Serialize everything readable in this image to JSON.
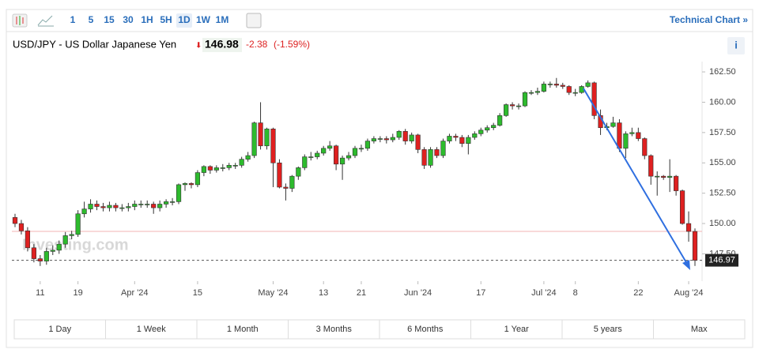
{
  "toolbar": {
    "intervals": [
      "1",
      "5",
      "15",
      "30",
      "1H",
      "5H",
      "1D",
      "1W",
      "1M"
    ],
    "link": "Technical Chart »"
  },
  "header": {
    "title": "USD/JPY - US Dollar Japanese Yen",
    "price": "146.98",
    "change": "-2.38",
    "change_pct": "(-1.59%)",
    "info": "i"
  },
  "ranges": [
    "1 Day",
    "1 Week",
    "1 Month",
    "3 Months",
    "6 Months",
    "1 Year",
    "5 years",
    "Max"
  ],
  "chart_data": {
    "type": "candlestick",
    "watermark": "Investing.com",
    "up_color": "#2dbb2d",
    "down_color": "#df2020",
    "ylim": [
      145.25,
      163.35
    ],
    "yticks": [
      {
        "value": 147.5,
        "label": "147.50"
      },
      {
        "value": 150,
        "label": "150.00"
      },
      {
        "value": 152.5,
        "label": "152.50"
      },
      {
        "value": 155,
        "label": "155.00"
      },
      {
        "value": 157.5,
        "label": "157.50"
      },
      {
        "value": 160,
        "label": "160.00"
      },
      {
        "value": 162.5,
        "label": "162.50"
      }
    ],
    "last_price": 146.97,
    "previous_close": 149.35,
    "categories": [
      null,
      null,
      null,
      null,
      "11",
      null,
      null,
      null,
      null,
      null,
      "19",
      null,
      null,
      null,
      null,
      null,
      null,
      null,
      null,
      "Apr '24",
      null,
      null,
      null,
      null,
      null,
      null,
      null,
      null,
      null,
      "15",
      null,
      null,
      null,
      null,
      null,
      null,
      null,
      null,
      null,
      null,
      null,
      "May '24",
      null,
      null,
      null,
      null,
      null,
      null,
      null,
      "13",
      null,
      null,
      null,
      null,
      null,
      "21",
      null,
      null,
      null,
      null,
      null,
      null,
      null,
      null,
      "Jun '24",
      null,
      null,
      null,
      null,
      null,
      null,
      null,
      null,
      null,
      "17",
      null,
      null,
      null,
      null,
      null,
      null,
      null,
      null,
      null,
      "Jul '24",
      null,
      null,
      null,
      null,
      "8",
      null,
      null,
      null,
      null,
      null,
      null,
      null,
      null,
      null,
      "22",
      null,
      null,
      null,
      null,
      null,
      null,
      null,
      "Aug '24",
      null
    ],
    "open": [
      150.5,
      150.0,
      149.4,
      148.0,
      147.1,
      146.9,
      147.7,
      147.8,
      148.3,
      149.0,
      149.1,
      150.8,
      151.2,
      151.6,
      151.4,
      151.3,
      151.5,
      151.3,
      151.3,
      151.4,
      151.6,
      151.6,
      151.6,
      151.3,
      151.6,
      151.8,
      151.8,
      153.2,
      153.3,
      153.2,
      154.2,
      154.7,
      154.4,
      154.6,
      154.6,
      154.8,
      154.8,
      155.3,
      155.6,
      158.3,
      156.4,
      157.8,
      155.0,
      153.0,
      152.9,
      153.9,
      154.6,
      155.5,
      155.5,
      155.8,
      156.2,
      156.4,
      154.9,
      155.4,
      155.6,
      156.2,
      156.2,
      156.8,
      157.0,
      157.0,
      156.9,
      157.1,
      157.6,
      156.8,
      157.3,
      156.1,
      154.8,
      156.1,
      155.6,
      156.8,
      157.2,
      157.1,
      156.6,
      157.1,
      157.4,
      157.7,
      157.9,
      158.1,
      158.9,
      159.8,
      159.7,
      159.7,
      160.8,
      160.8,
      160.9,
      161.5,
      161.5,
      161.4,
      161.3,
      160.8,
      160.8,
      161.3,
      161.6,
      158.9,
      157.9,
      158.0,
      158.3,
      156.2,
      157.4,
      157.5,
      157.0,
      155.6,
      153.9,
      153.9,
      153.8,
      153.9,
      152.7,
      150.0,
      149.35
    ],
    "high": [
      150.8,
      150.3,
      149.7,
      148.3,
      147.4,
      148.0,
      148.2,
      148.6,
      149.3,
      149.4,
      151.1,
      151.8,
      152.0,
      151.9,
      151.7,
      151.8,
      151.7,
      151.6,
      151.7,
      151.9,
      151.9,
      151.9,
      151.8,
      151.9,
      152.0,
      152.1,
      153.3,
      153.4,
      153.4,
      154.4,
      154.8,
      154.8,
      154.8,
      154.9,
      155.0,
      155.0,
      155.5,
      155.9,
      158.4,
      160.0,
      157.9,
      157.9,
      155.3,
      153.3,
      154.0,
      154.7,
      155.7,
      155.9,
      156.0,
      156.4,
      156.8,
      156.5,
      155.6,
      155.9,
      156.4,
      156.5,
      157.0,
      157.2,
      157.2,
      157.2,
      157.4,
      157.7,
      157.8,
      157.5,
      157.4,
      156.3,
      156.3,
      156.3,
      157.0,
      157.4,
      157.4,
      157.3,
      157.3,
      157.6,
      157.9,
      158.1,
      158.3,
      159.1,
      159.9,
      160.0,
      159.9,
      160.9,
      161.0,
      161.2,
      161.7,
      161.7,
      162.0,
      161.6,
      161.4,
      161.1,
      161.4,
      161.8,
      161.7,
      159.4,
      158.3,
      158.8,
      158.6,
      157.6,
      157.9,
      157.9,
      157.1,
      155.7,
      154.3,
      154.0,
      155.3,
      154.0,
      152.8,
      151.0,
      149.6
    ],
    "low": [
      149.7,
      149.1,
      147.7,
      146.8,
      146.5,
      146.6,
      147.4,
      147.5,
      148.0,
      148.7,
      148.9,
      150.5,
      150.9,
      151.1,
      151.0,
      151.0,
      151.0,
      151.0,
      151.0,
      151.1,
      151.3,
      151.3,
      150.8,
      151.0,
      151.3,
      151.5,
      151.6,
      152.7,
      152.9,
      153.0,
      153.9,
      154.1,
      154.2,
      154.3,
      154.4,
      154.5,
      154.6,
      155.1,
      155.4,
      156.1,
      156.1,
      153.0,
      152.9,
      151.9,
      152.6,
      153.6,
      154.4,
      155.2,
      155.3,
      155.6,
      156.0,
      154.4,
      153.6,
      155.2,
      155.4,
      155.9,
      156.0,
      156.6,
      156.7,
      156.6,
      156.7,
      156.9,
      156.5,
      156.6,
      155.8,
      154.5,
      154.6,
      155.4,
      155.4,
      156.6,
      156.8,
      156.3,
      155.7,
      156.9,
      157.2,
      157.5,
      157.7,
      158.0,
      158.8,
      159.4,
      159.4,
      159.6,
      160.6,
      160.6,
      160.8,
      161.2,
      161.2,
      161.1,
      160.6,
      160.5,
      160.7,
      161.2,
      158.6,
      157.3,
      157.7,
      157.9,
      155.9,
      155.4,
      157.2,
      156.8,
      155.3,
      153.2,
      152.3,
      153.6,
      152.6,
      152.3,
      149.9,
      148.5,
      146.5
    ],
    "close": [
      150.0,
      149.4,
      148.0,
      147.1,
      146.9,
      147.7,
      147.8,
      148.3,
      149.0,
      149.1,
      150.8,
      151.2,
      151.6,
      151.4,
      151.3,
      151.5,
      151.3,
      151.3,
      151.4,
      151.6,
      151.6,
      151.6,
      151.3,
      151.6,
      151.8,
      151.8,
      153.2,
      153.3,
      153.2,
      154.2,
      154.7,
      154.4,
      154.6,
      154.6,
      154.8,
      154.8,
      155.3,
      155.6,
      158.3,
      156.4,
      157.8,
      155.0,
      153.0,
      152.9,
      153.9,
      154.6,
      155.5,
      155.5,
      155.8,
      156.2,
      156.4,
      154.9,
      155.4,
      155.6,
      156.2,
      156.2,
      156.8,
      157.0,
      157.0,
      156.9,
      157.1,
      157.6,
      156.8,
      157.3,
      156.1,
      154.8,
      156.1,
      155.6,
      156.8,
      157.2,
      157.1,
      156.6,
      157.1,
      157.4,
      157.7,
      157.9,
      158.1,
      158.9,
      159.8,
      159.7,
      159.7,
      160.8,
      160.8,
      160.9,
      161.5,
      161.5,
      161.4,
      161.3,
      160.8,
      160.8,
      161.3,
      161.6,
      158.9,
      157.9,
      158.0,
      158.3,
      156.2,
      157.4,
      157.5,
      157.0,
      155.6,
      153.9,
      153.9,
      153.8,
      153.9,
      152.7,
      150.0,
      149.35,
      146.97
    ]
  }
}
